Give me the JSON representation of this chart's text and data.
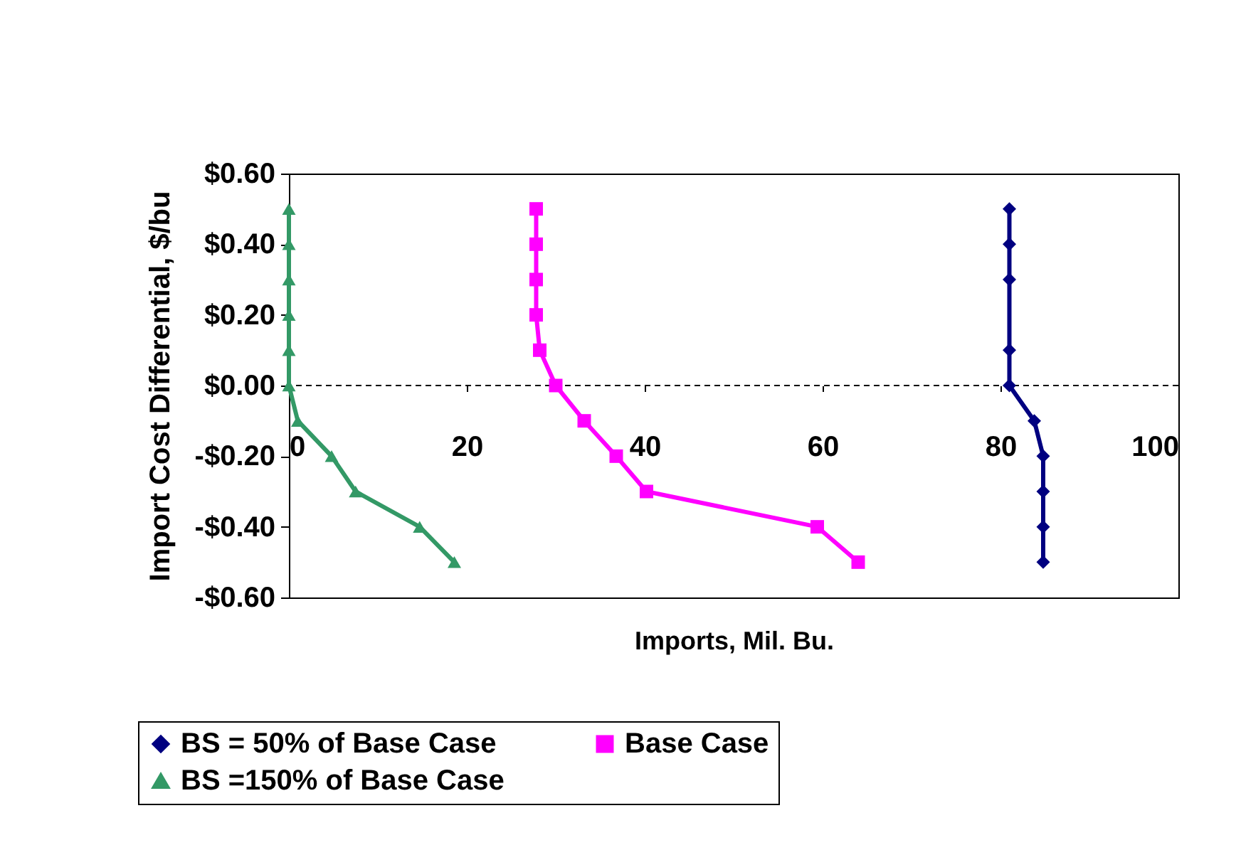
{
  "chart_data": {
    "type": "line",
    "xlabel": "Imports, Mil. Bu.",
    "ylabel": "Import Cost Differential, $/bu",
    "xlim": [
      0,
      100
    ],
    "xticks": [
      0,
      20,
      40,
      60,
      80,
      100
    ],
    "ylim": [
      -0.6,
      0.6
    ],
    "yticks": [
      {
        "value": -0.6,
        "label": "-$0.60"
      },
      {
        "value": -0.4,
        "label": "-$0.40"
      },
      {
        "value": -0.2,
        "label": "-$0.20"
      },
      {
        "value": 0,
        "label": "$0.00"
      },
      {
        "value": 0.2,
        "label": "$0.20"
      },
      {
        "value": 0.4,
        "label": "$0.40"
      },
      {
        "value": 0.6,
        "label": "$0.60"
      }
    ],
    "legend": "bottom",
    "line_style": "solid",
    "ref_lines": [
      {
        "axis": "y",
        "value": 0,
        "color": "#000000",
        "line_style": "dashed"
      }
    ],
    "series": [
      {
        "name": "BS = 50% of Base Case",
        "color": "#000080",
        "marker": "diamond",
        "x": [
          81.0,
          81.0,
          81.0,
          81.0,
          81.0,
          83.8,
          84.8,
          84.8,
          84.8,
          84.8
        ],
        "values": [
          0.5,
          0.4,
          0.3,
          0.1,
          0,
          -0.1,
          -0.2,
          -0.3,
          -0.4,
          -0.5
        ]
      },
      {
        "name": "Base Case",
        "color": "#ff00ff",
        "marker": "square",
        "x": [
          27.8,
          27.8,
          27.8,
          27.8,
          28.2,
          30.0,
          33.2,
          36.8,
          40.2,
          59.4,
          64.0
        ],
        "values": [
          0.5,
          0.4,
          0.3,
          0.2,
          0.1,
          0,
          -0.1,
          -0.2,
          -0.3,
          -0.4,
          -0.5
        ]
      },
      {
        "name": "BS =150% of Base Case",
        "color": "#339966",
        "marker": "triangle",
        "x": [
          0,
          0,
          0,
          0,
          0,
          0,
          1.0,
          4.8,
          7.5,
          14.7,
          18.6
        ],
        "values": [
          0.5,
          0.4,
          0.3,
          0.2,
          0.1,
          0,
          -0.1,
          -0.2,
          -0.3,
          -0.4,
          -0.5
        ]
      }
    ]
  }
}
